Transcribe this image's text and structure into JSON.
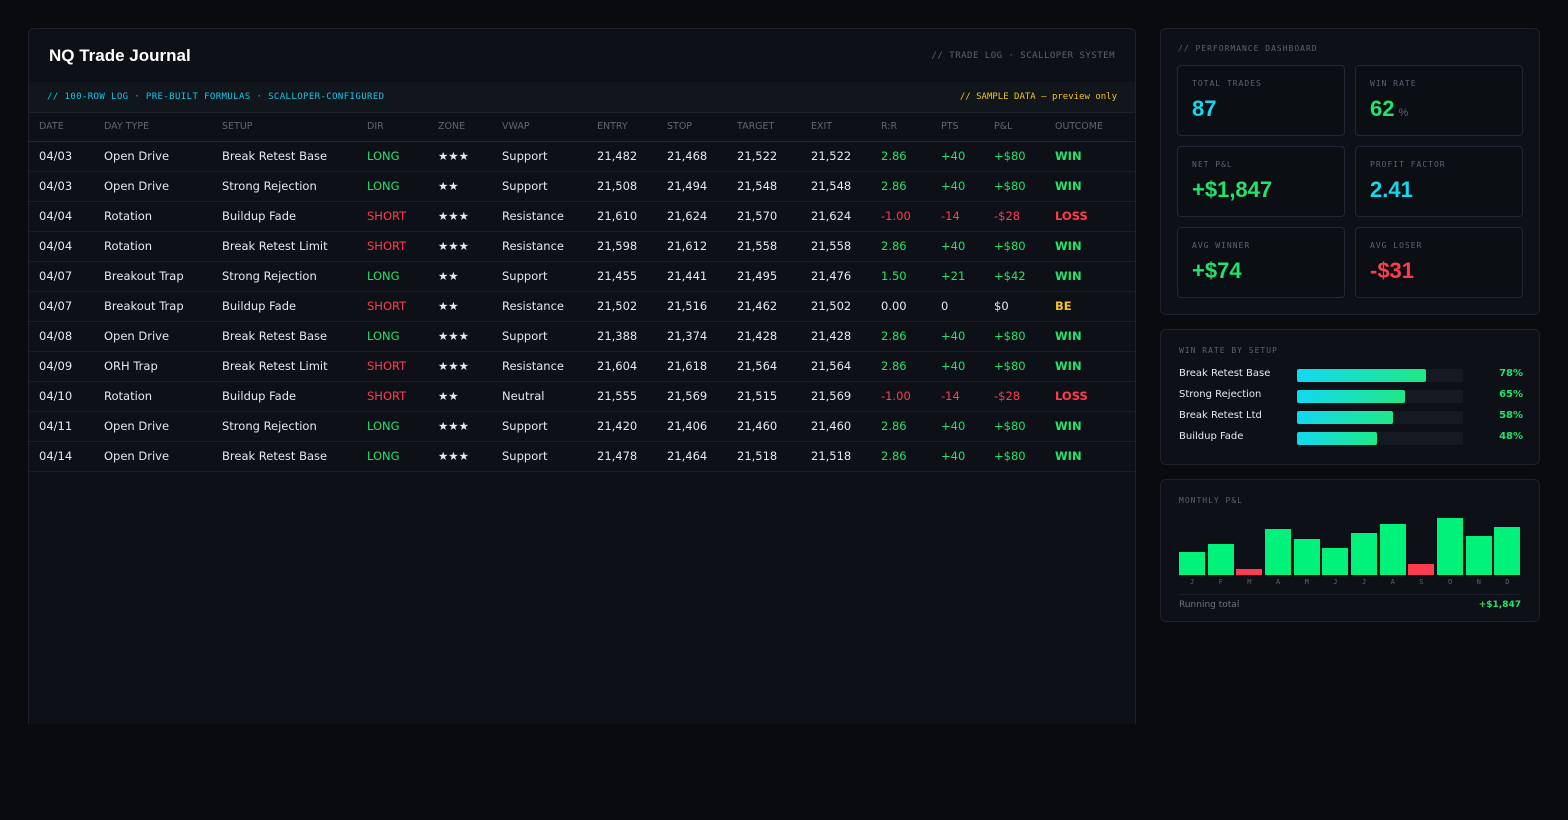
{
  "journal": {
    "title": "NQ Trade Journal",
    "subtitle": "// TRADE LOG · SCALLOPER SYSTEM",
    "strip_left": "// 100-ROW LOG · PRE-BUILT FORMULAS · SCALLOPER-CONFIGURED",
    "strip_right": "// SAMPLE DATA — preview only",
    "columns": [
      "DATE",
      "DAY TYPE",
      "SETUP",
      "DIR",
      "ZONE",
      "VWAP",
      "ENTRY",
      "STOP",
      "TARGET",
      "EXIT",
      "R:R",
      "PTS",
      "P&L",
      "OUTCOME"
    ],
    "rows": [
      {
        "date": "04/03",
        "day_type": "Open Drive",
        "setup": "Break Retest Base",
        "dir": "LONG",
        "zone": "★★★",
        "vwap": "Support",
        "entry": "21,482",
        "stop": "21,468",
        "target": "21,522",
        "exit": "21,522",
        "rr": "2.86",
        "pts": "+40",
        "pnl": "+$80",
        "outcome": "WIN"
      },
      {
        "date": "04/03",
        "day_type": "Open Drive",
        "setup": "Strong Rejection",
        "dir": "LONG",
        "zone": "★★",
        "vwap": "Support",
        "entry": "21,508",
        "stop": "21,494",
        "target": "21,548",
        "exit": "21,548",
        "rr": "2.86",
        "pts": "+40",
        "pnl": "+$80",
        "outcome": "WIN"
      },
      {
        "date": "04/04",
        "day_type": "Rotation",
        "setup": "Buildup Fade",
        "dir": "SHORT",
        "zone": "★★★",
        "vwap": "Resistance",
        "entry": "21,610",
        "stop": "21,624",
        "target": "21,570",
        "exit": "21,624",
        "rr": "-1.00",
        "pts": "-14",
        "pnl": "-$28",
        "outcome": "LOSS"
      },
      {
        "date": "04/04",
        "day_type": "Rotation",
        "setup": "Break Retest Limit",
        "dir": "SHORT",
        "zone": "★★★",
        "vwap": "Resistance",
        "entry": "21,598",
        "stop": "21,612",
        "target": "21,558",
        "exit": "21,558",
        "rr": "2.86",
        "pts": "+40",
        "pnl": "+$80",
        "outcome": "WIN"
      },
      {
        "date": "04/07",
        "day_type": "Breakout Trap",
        "setup": "Strong Rejection",
        "dir": "LONG",
        "zone": "★★",
        "vwap": "Support",
        "entry": "21,455",
        "stop": "21,441",
        "target": "21,495",
        "exit": "21,476",
        "rr": "1.50",
        "pts": "+21",
        "pnl": "+$42",
        "outcome": "WIN"
      },
      {
        "date": "04/07",
        "day_type": "Breakout Trap",
        "setup": "Buildup Fade",
        "dir": "SHORT",
        "zone": "★★",
        "vwap": "Resistance",
        "entry": "21,502",
        "stop": "21,516",
        "target": "21,462",
        "exit": "21,502",
        "rr": "0.00",
        "pts": "0",
        "pnl": "$0",
        "outcome": "BE"
      },
      {
        "date": "04/08",
        "day_type": "Open Drive",
        "setup": "Break Retest Base",
        "dir": "LONG",
        "zone": "★★★",
        "vwap": "Support",
        "entry": "21,388",
        "stop": "21,374",
        "target": "21,428",
        "exit": "21,428",
        "rr": "2.86",
        "pts": "+40",
        "pnl": "+$80",
        "outcome": "WIN"
      },
      {
        "date": "04/09",
        "day_type": "ORH Trap",
        "setup": "Break Retest Limit",
        "dir": "SHORT",
        "zone": "★★★",
        "vwap": "Resistance",
        "entry": "21,604",
        "stop": "21,618",
        "target": "21,564",
        "exit": "21,564",
        "rr": "2.86",
        "pts": "+40",
        "pnl": "+$80",
        "outcome": "WIN"
      },
      {
        "date": "04/10",
        "day_type": "Rotation",
        "setup": "Buildup Fade",
        "dir": "SHORT",
        "zone": "★★",
        "vwap": "Neutral",
        "entry": "21,555",
        "stop": "21,569",
        "target": "21,515",
        "exit": "21,569",
        "rr": "-1.00",
        "pts": "-14",
        "pnl": "-$28",
        "outcome": "LOSS"
      },
      {
        "date": "04/11",
        "day_type": "Open Drive",
        "setup": "Strong Rejection",
        "dir": "LONG",
        "zone": "★★★",
        "vwap": "Support",
        "entry": "21,420",
        "stop": "21,406",
        "target": "21,460",
        "exit": "21,460",
        "rr": "2.86",
        "pts": "+40",
        "pnl": "+$80",
        "outcome": "WIN"
      },
      {
        "date": "04/14",
        "day_type": "Open Drive",
        "setup": "Break Retest Base",
        "dir": "LONG",
        "zone": "★★★",
        "vwap": "Support",
        "entry": "21,478",
        "stop": "21,464",
        "target": "21,518",
        "exit": "21,518",
        "rr": "2.86",
        "pts": "+40",
        "pnl": "+$80",
        "outcome": "WIN"
      }
    ]
  },
  "performance": {
    "label": "// PERFORMANCE DASHBOARD",
    "total_trades_label": "TOTAL TRADES",
    "total_trades": "87",
    "win_rate_label": "WIN RATE",
    "win_rate": "62",
    "win_rate_unit": "%",
    "net_pnl_label": "NET P&L",
    "net_pnl": "+$1,847",
    "profit_factor_label": "PROFIT FACTOR",
    "profit_factor": "2.41",
    "avg_winner_label": "AVG WINNER",
    "avg_winner": "+$74",
    "avg_loser_label": "AVG LOSER",
    "avg_loser": "-$31"
  },
  "win_rate_by_setup": {
    "label": "WIN RATE BY SETUP",
    "items": [
      {
        "name": "Break Retest Base",
        "pct_label": "78%",
        "value": 78
      },
      {
        "name": "Strong Rejection",
        "pct_label": "65%",
        "value": 65
      },
      {
        "name": "Break Retest Ltd",
        "pct_label": "58%",
        "value": 58
      },
      {
        "name": "Buildup Fade",
        "pct_label": "48%",
        "value": 48
      }
    ]
  },
  "monthly_pnl": {
    "label": "MONTHLY P&L",
    "running_total_label": "Running total",
    "running_total": "+$1,847",
    "colors": {
      "positive": "#00f27a",
      "negative": "#ff3d4f"
    }
  },
  "chart_data": {
    "type": "bar",
    "title": "MONTHLY P&L",
    "categories": [
      "J",
      "F",
      "M",
      "A",
      "M",
      "J",
      "J",
      "A",
      "S",
      "O",
      "N",
      "D"
    ],
    "values": [
      40,
      55,
      -12,
      80,
      63,
      48,
      73,
      90,
      -22,
      100,
      68,
      85
    ],
    "ylim": [
      -25,
      100
    ],
    "xlabel": "",
    "ylabel": ""
  }
}
